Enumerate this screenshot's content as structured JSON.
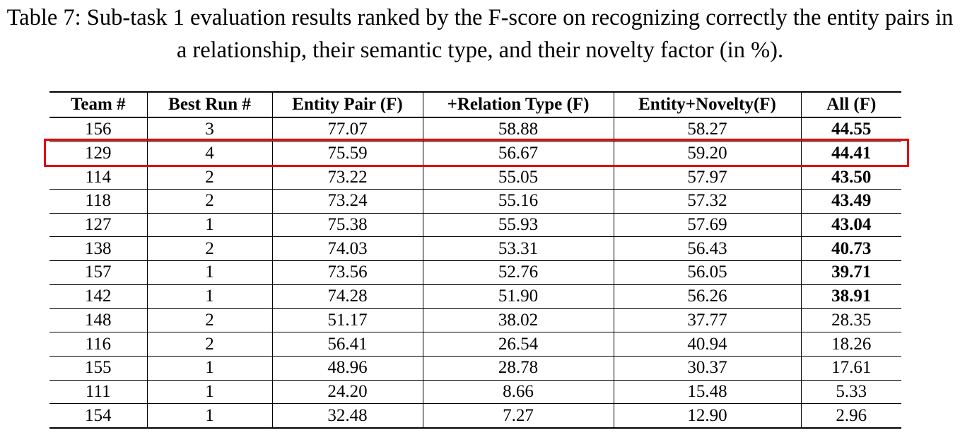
{
  "caption": "Table 7: Sub-task 1 evaluation results ranked by the F-score on recognizing correctly the entity pairs in a relationship, their semantic type, and their novelty factor (in %).",
  "table": {
    "headers": [
      "Team #",
      "Best Run #",
      "Entity Pair (F)",
      "+Relation Type (F)",
      "Entity+Novelty(F)",
      "All (F)"
    ],
    "rows": [
      [
        "156",
        "3",
        "77.07",
        "58.88",
        "58.27",
        "44.55"
      ],
      [
        "129",
        "4",
        "75.59",
        "56.67",
        "59.20",
        "44.41"
      ],
      [
        "114",
        "2",
        "73.22",
        "55.05",
        "57.97",
        "43.50"
      ],
      [
        "118",
        "2",
        "73.24",
        "55.16",
        "57.32",
        "43.49"
      ],
      [
        "127",
        "1",
        "75.38",
        "55.93",
        "57.69",
        "43.04"
      ],
      [
        "138",
        "2",
        "74.03",
        "53.31",
        "56.43",
        "40.73"
      ],
      [
        "157",
        "1",
        "73.56",
        "52.76",
        "56.05",
        "39.71"
      ],
      [
        "142",
        "1",
        "74.28",
        "51.90",
        "56.26",
        "38.91"
      ],
      [
        "148",
        "2",
        "51.17",
        "38.02",
        "37.77",
        "28.35"
      ],
      [
        "116",
        "2",
        "56.41",
        "26.54",
        "40.94",
        "18.26"
      ],
      [
        "155",
        "1",
        "48.96",
        "28.78",
        "30.37",
        "17.61"
      ],
      [
        "111",
        "1",
        "24.20",
        "8.66",
        "15.48",
        "5.33"
      ],
      [
        "154",
        "1",
        "32.48",
        "7.27",
        "12.90",
        "2.96"
      ]
    ]
  }
}
